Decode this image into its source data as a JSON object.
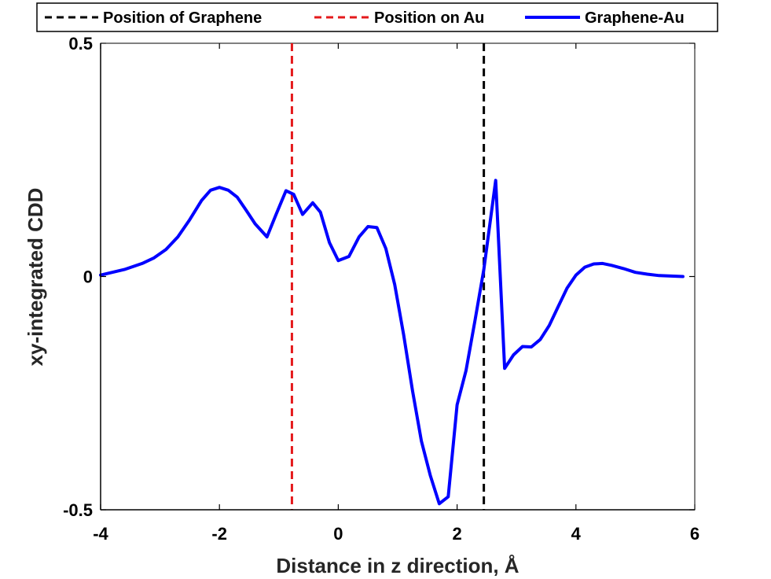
{
  "chart_data": {
    "type": "line",
    "title": "",
    "xlabel": "Distance in z direction, Å",
    "ylabel": "xy-integrated CDD",
    "xlim": [
      -4,
      6
    ],
    "ylim": [
      -0.5,
      0.5
    ],
    "xticks": [
      -4,
      -2,
      0,
      2,
      4,
      6
    ],
    "xtick_labels": [
      "-4",
      "-2",
      "0",
      "2",
      "4",
      "6"
    ],
    "yticks": [
      -0.5,
      0,
      0.5
    ],
    "ytick_labels": [
      "-0.5",
      "0",
      "0.5"
    ],
    "grid": false,
    "legend_position": "top",
    "reference_lines": [
      {
        "name": "Position of Graphene",
        "x": 2.45,
        "color": "#000000",
        "style": "dashed"
      },
      {
        "name": "Position on Au",
        "x": -0.78,
        "color": "#e41a1c",
        "style": "dashed"
      }
    ],
    "series": [
      {
        "name": "Graphene-Au",
        "color": "#0000ff",
        "style": "solid",
        "x": [
          -4.0,
          -3.6,
          -3.3,
          -3.1,
          -2.9,
          -2.7,
          -2.5,
          -2.3,
          -2.15,
          -2.0,
          -1.85,
          -1.7,
          -1.55,
          -1.4,
          -1.2,
          -1.05,
          -0.88,
          -0.75,
          -0.6,
          -0.43,
          -0.3,
          -0.15,
          0.0,
          0.18,
          0.35,
          0.5,
          0.65,
          0.8,
          0.95,
          1.1,
          1.25,
          1.4,
          1.55,
          1.7,
          1.85,
          2.0,
          2.15,
          2.3,
          2.45,
          2.65,
          2.8,
          2.95,
          3.1,
          3.25,
          3.4,
          3.55,
          3.7,
          3.85,
          4.0,
          4.15,
          4.3,
          4.45,
          4.6,
          4.8,
          5.0,
          5.2,
          5.4,
          5.6,
          5.8
        ],
        "values": [
          0.003,
          0.015,
          0.028,
          0.04,
          0.058,
          0.085,
          0.122,
          0.163,
          0.185,
          0.191,
          0.185,
          0.17,
          0.142,
          0.113,
          0.085,
          0.132,
          0.184,
          0.176,
          0.133,
          0.158,
          0.138,
          0.073,
          0.034,
          0.043,
          0.085,
          0.107,
          0.105,
          0.06,
          -0.017,
          -0.125,
          -0.245,
          -0.353,
          -0.427,
          -0.487,
          -0.472,
          -0.275,
          -0.202,
          -0.095,
          0.015,
          0.206,
          -0.197,
          -0.168,
          -0.15,
          -0.151,
          -0.135,
          -0.105,
          -0.065,
          -0.025,
          0.003,
          0.02,
          0.027,
          0.028,
          0.024,
          0.017,
          0.009,
          0.005,
          0.002,
          0.001,
          0.0
        ]
      }
    ]
  }
}
